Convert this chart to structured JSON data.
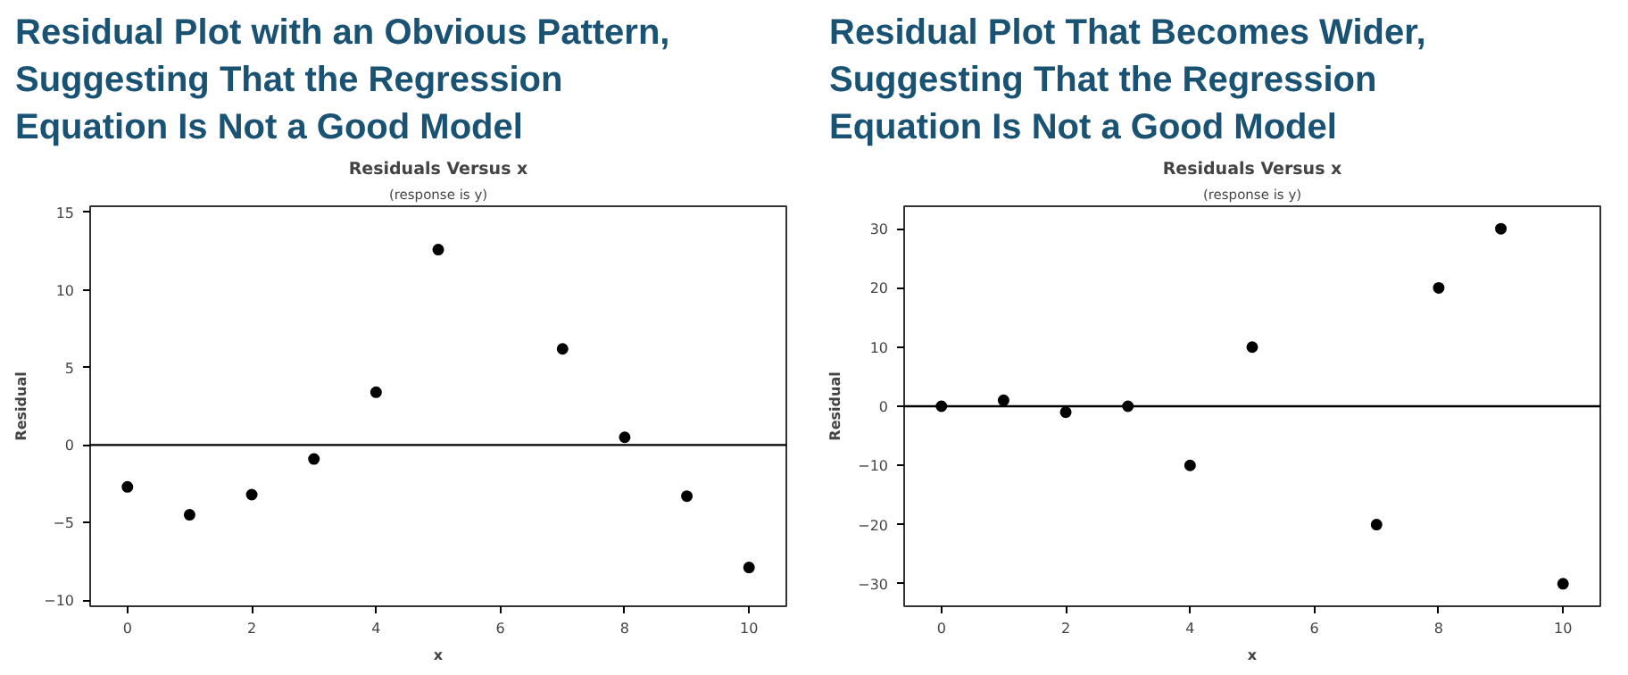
{
  "chart_data": [
    {
      "type": "scatter",
      "title": "Residual Plot with an Obvious Pattern,\nSuggesting That the Regression\nEquation Is Not a Good Model",
      "subtitle": "Residuals Versus x",
      "annotations": [
        "(response is y)"
      ],
      "xlabel": "x",
      "ylabel": "Residual",
      "x": [
        0,
        1,
        2,
        3,
        4,
        5,
        7,
        8,
        9,
        10
      ],
      "series": [
        {
          "color": "#000000",
          "values": [
            -2.7,
            -4.5,
            -3.2,
            -0.9,
            3.4,
            12.6,
            6.2,
            0.5,
            -3.3,
            -7.9
          ]
        }
      ],
      "xlim": [
        -0.6,
        10.6
      ],
      "xticks": [
        0,
        2,
        4,
        6,
        8,
        10
      ],
      "ylim": [
        -10.4,
        15.4
      ],
      "yticks": [
        -10,
        -5,
        0,
        5,
        10,
        15
      ],
      "ref_lines": [
        {
          "axis": "y",
          "value": 0,
          "color": "#000000"
        }
      ],
      "marker": "circle",
      "grid": false
    },
    {
      "type": "scatter",
      "title": "Residual Plot That Becomes Wider,\nSuggesting That the Regression\nEquation Is Not a Good Model",
      "subtitle": "Residuals Versus x",
      "annotations": [
        "(response is y)"
      ],
      "xlabel": "x",
      "ylabel": "Residual",
      "x": [
        0,
        1,
        2,
        3,
        4,
        5,
        7,
        8,
        9,
        10
      ],
      "series": [
        {
          "color": "#000000",
          "values": [
            0,
            1,
            -1,
            0,
            -10,
            10,
            -20,
            20,
            30,
            -30
          ]
        }
      ],
      "xlim": [
        -0.6,
        10.6
      ],
      "xticks": [
        0,
        2,
        4,
        6,
        8,
        10
      ],
      "ylim": [
        -33.8,
        33.8
      ],
      "yticks": [
        -30,
        -20,
        -10,
        0,
        10,
        20,
        30
      ],
      "ref_lines": [
        {
          "axis": "y",
          "value": 0,
          "color": "#000000"
        }
      ],
      "marker": "circle",
      "grid": false
    }
  ]
}
